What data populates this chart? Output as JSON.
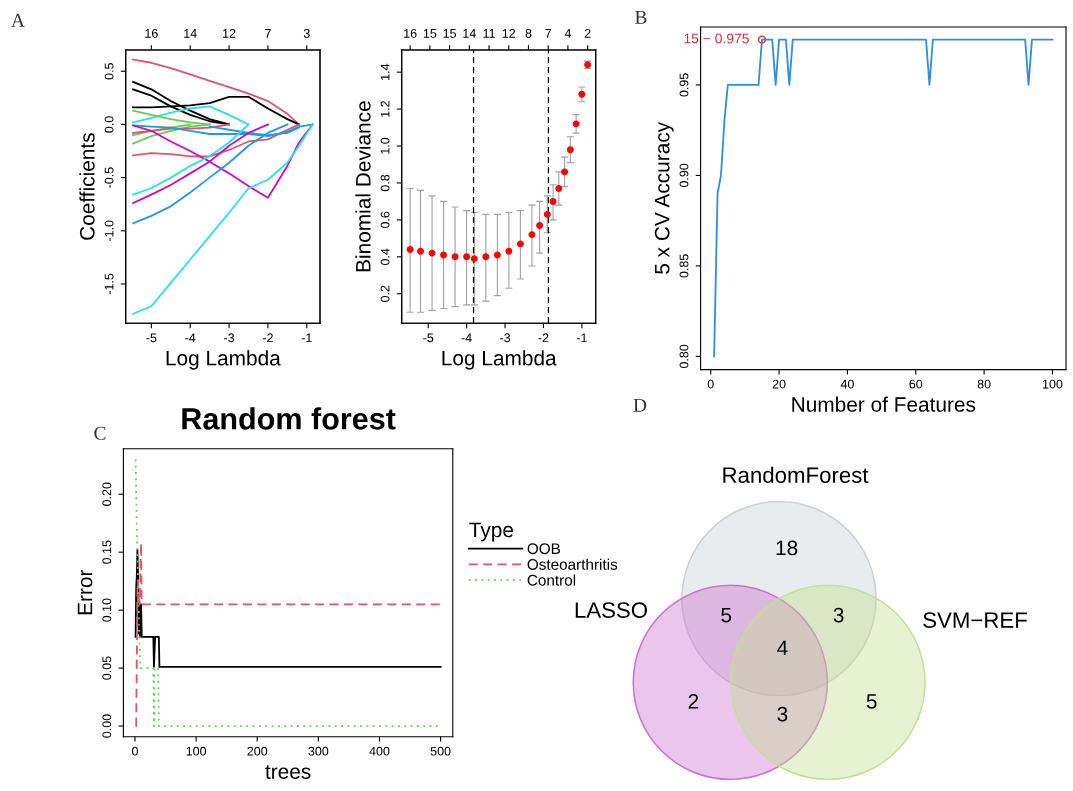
{
  "chart_data": [
    {
      "type": "line",
      "xlabel": "Log Lambda",
      "ylabel": "Coefficients",
      "annotations": [
        "A",
        "16",
        "14",
        "12",
        "7",
        "3"
      ],
      "xlim": [
        -5.66,
        -0.66
      ],
      "ylim": [
        -1.87,
        0.7
      ],
      "xticks": [
        -5,
        -4,
        -3,
        -2,
        -1
      ],
      "yticks": [
        {
          "value": -1.5,
          "label": "-1.5"
        },
        {
          "value": -1,
          "label": "-1.0"
        },
        {
          "value": -0.5,
          "label": "-0.5"
        },
        {
          "value": 0,
          "label": "0.0"
        },
        {
          "value": 0.5,
          "label": "0.5"
        }
      ],
      "x": [
        -5.47,
        -5,
        -4.5,
        -4,
        -3.5,
        -3,
        -2.5,
        -2,
        -1.5,
        -1.2,
        -0.85
      ],
      "series": [
        {
          "color": "#df536b",
          "values": [
            0.61,
            0.58,
            0.53,
            0.47,
            0.41,
            0.35,
            0.29,
            0.22,
            0.1,
            0,
            null
          ]
        },
        {
          "color": "#000000",
          "values": [
            0.4,
            0.33,
            0.22,
            0.13,
            0.05,
            0,
            null,
            null,
            null,
            null,
            null
          ]
        },
        {
          "color": "#000000",
          "values": [
            0.33,
            0.27,
            0.17,
            0.09,
            0.03,
            0,
            null,
            null,
            null,
            null,
            null
          ]
        },
        {
          "color": "#000000",
          "values": [
            0.16,
            0.16,
            0.17,
            0.18,
            0.2,
            0.26,
            0.26,
            0.15,
            0.05,
            0,
            null
          ]
        },
        {
          "color": "#28e2e5",
          "values": [
            0.02,
            0.06,
            0.11,
            0.15,
            0.17,
            0.09,
            0,
            null,
            null,
            null,
            null
          ]
        },
        {
          "color": "#61d04f",
          "values": [
            0.13,
            0.09,
            0.05,
            0.02,
            0,
            null,
            null,
            null,
            null,
            null,
            null
          ]
        },
        {
          "color": "#61d04f",
          "values": [
            -0.18,
            -0.11,
            -0.06,
            -0.02,
            0,
            null,
            null,
            null,
            null,
            null,
            null
          ]
        },
        {
          "color": "#61d04f",
          "values": [
            -0.1,
            -0.06,
            -0.03,
            0,
            null,
            null,
            null,
            null,
            null,
            null,
            null
          ]
        },
        {
          "color": "#df536b",
          "values": [
            -0.08,
            -0.06,
            -0.04,
            -0.04,
            -0.03,
            0,
            null,
            null,
            null,
            null,
            null
          ]
        },
        {
          "color": "#df536b",
          "values": [
            -0.29,
            -0.27,
            -0.28,
            -0.3,
            -0.3,
            -0.24,
            -0.16,
            -0.14,
            -0.05,
            0,
            null
          ]
        },
        {
          "color": "#2297e6",
          "values": [
            -0.01,
            -0.02,
            -0.03,
            -0.06,
            -0.09,
            -0.09,
            -0.09,
            -0.11,
            -0.07,
            -0.02,
            0
          ]
        },
        {
          "color": "#2297e6",
          "values": [
            null,
            null,
            null,
            null,
            -0.02,
            -0.05,
            -0.08,
            -0.1,
            -0.08,
            -0.03,
            null
          ]
        },
        {
          "color": "#cd0bbc",
          "values": [
            -0.01,
            -0.06,
            -0.16,
            -0.25,
            -0.35,
            -0.46,
            -0.58,
            -0.69,
            -0.39,
            -0.17,
            0
          ]
        },
        {
          "color": "#28e2e5",
          "values": [
            -0.66,
            -0.6,
            -0.5,
            -0.39,
            -0.3,
            -0.17,
            0,
            null,
            null,
            null,
            null
          ]
        },
        {
          "color": "#cd0bbc",
          "values": [
            -0.74,
            -0.66,
            -0.57,
            -0.46,
            -0.35,
            -0.2,
            -0.08,
            0,
            null,
            null,
            null
          ]
        },
        {
          "color": "#2297e6",
          "values": [
            -0.93,
            -0.86,
            -0.77,
            -0.64,
            -0.5,
            -0.36,
            -0.2,
            -0.08,
            0,
            null,
            null
          ]
        },
        {
          "color": "#28e2e5",
          "values": [
            -1.78,
            -1.71,
            -1.49,
            -1.27,
            -1.05,
            -0.83,
            -0.6,
            -0.52,
            -0.36,
            -0.2,
            0
          ]
        }
      ]
    },
    {
      "type": "scatter",
      "xlabel": "Log Lambda",
      "ylabel": "Binomial Deviance",
      "marker": "circle",
      "color": "#ff0000",
      "annotations": [
        "16",
        "15",
        "15",
        "14",
        "11",
        "12",
        "8",
        "7",
        "4",
        "2"
      ],
      "xlim": [
        -5.69,
        -0.64
      ],
      "ylim": [
        0.04,
        1.52
      ],
      "xticks": [
        -5,
        -4,
        -3,
        -2,
        -1
      ],
      "yticks": [
        0.2,
        0.4,
        0.6,
        0.8,
        {
          "value": 1,
          "label": "1.0"
        },
        1.2,
        1.4
      ],
      "ref_lines": [
        {
          "axis": "x",
          "value": -3.82,
          "line_style": "dashed",
          "color": "#000000"
        },
        {
          "axis": "x",
          "value": -1.87,
          "line_style": "dashed",
          "color": "#000000"
        }
      ],
      "x": [
        -5.47,
        -5.2,
        -4.9,
        -4.6,
        -4.3,
        -4.0,
        -3.8,
        -3.5,
        -3.2,
        -2.9,
        -2.6,
        -2.3,
        -2.1,
        -1.9,
        -1.75,
        -1.6,
        -1.45,
        -1.3,
        -1.15,
        -1.0,
        -0.85
      ],
      "values": [
        0.44,
        0.43,
        0.42,
        0.41,
        0.4,
        0.4,
        0.39,
        0.4,
        0.41,
        0.43,
        0.47,
        0.52,
        0.57,
        0.63,
        0.7,
        0.77,
        0.86,
        0.98,
        1.12,
        1.28,
        1.44
      ],
      "errors": [
        [
          0.1,
          0.77
        ],
        [
          0.1,
          0.76
        ],
        [
          0.11,
          0.73
        ],
        [
          0.12,
          0.7
        ],
        [
          0.13,
          0.67
        ],
        [
          0.14,
          0.65
        ],
        [
          0.14,
          0.64
        ],
        [
          0.16,
          0.63
        ],
        [
          0.19,
          0.63
        ],
        [
          0.23,
          0.64
        ],
        [
          0.28,
          0.65
        ],
        [
          0.35,
          0.68
        ],
        [
          0.42,
          0.7
        ],
        [
          0.53,
          0.73
        ],
        [
          0.6,
          0.79
        ],
        [
          0.68,
          0.86
        ],
        [
          0.78,
          0.94
        ],
        [
          0.91,
          1.05
        ],
        [
          1.07,
          1.17
        ],
        [
          1.24,
          1.32
        ],
        [
          1.42,
          1.46
        ]
      ]
    },
    {
      "type": "line",
      "xlabel": "Number of Features",
      "ylabel": "5 x CV Accuracy",
      "color": "#2f8ee0",
      "annotations": [
        "B",
        {
          "text": "15 − 0.975",
          "x": 15,
          "y": 0.975
        }
      ],
      "xlim": [
        -2.96,
        103.96
      ],
      "ylim": [
        0.7927,
        0.982
      ],
      "xticks": [
        0,
        20,
        40,
        60,
        80,
        100
      ],
      "yticks": [
        {
          "value": 0.8,
          "label": "0.80"
        },
        0.85,
        {
          "value": 0.9,
          "label": "0.90"
        },
        0.95
      ],
      "x": [
        1,
        2,
        3,
        4,
        5,
        6,
        7,
        8,
        9,
        10,
        11,
        12,
        13,
        14,
        15,
        16,
        17,
        18,
        19,
        20,
        21,
        22,
        23,
        24,
        25,
        26,
        27,
        28,
        29,
        30,
        31,
        32,
        33,
        34,
        35,
        36,
        37,
        38,
        39,
        40,
        41,
        42,
        43,
        44,
        45,
        46,
        47,
        48,
        49,
        50,
        51,
        52,
        53,
        54,
        55,
        56,
        57,
        58,
        59,
        60,
        61,
        62,
        63,
        64,
        65,
        66,
        67,
        68,
        69,
        70,
        71,
        72,
        73,
        74,
        75,
        76,
        77,
        78,
        79,
        80,
        81,
        82,
        83,
        84,
        85,
        86,
        87,
        88,
        89,
        90,
        91,
        92,
        93,
        94,
        95,
        96,
        97,
        98,
        99,
        100
      ],
      "values": [
        0.8,
        0.89,
        0.9,
        0.93,
        0.95,
        0.95,
        0.95,
        0.95,
        0.95,
        0.95,
        0.95,
        0.95,
        0.95,
        0.95,
        0.975,
        0.975,
        0.975,
        0.975,
        0.95,
        0.975,
        0.975,
        0.975,
        0.95,
        0.975,
        0.975,
        0.975,
        0.975,
        0.975,
        0.975,
        0.975,
        0.975,
        0.975,
        0.975,
        0.975,
        0.975,
        0.975,
        0.975,
        0.975,
        0.975,
        0.975,
        0.975,
        0.975,
        0.975,
        0.975,
        0.975,
        0.975,
        0.975,
        0.975,
        0.975,
        0.975,
        0.975,
        0.975,
        0.975,
        0.975,
        0.975,
        0.975,
        0.975,
        0.975,
        0.975,
        0.975,
        0.975,
        0.975,
        0.975,
        0.95,
        0.975,
        0.975,
        0.975,
        0.975,
        0.975,
        0.975,
        0.975,
        0.975,
        0.975,
        0.975,
        0.975,
        0.975,
        0.975,
        0.975,
        0.975,
        0.975,
        0.975,
        0.975,
        0.975,
        0.975,
        0.975,
        0.975,
        0.975,
        0.975,
        0.975,
        0.975,
        0.975,
        0.975,
        0.95,
        0.975,
        0.975,
        0.975,
        0.975,
        0.975,
        0.975,
        0.975
      ]
    },
    {
      "type": "line",
      "title": "Random forest",
      "xlabel": "trees",
      "ylabel": "Error",
      "legend_title": "Type",
      "legend": "right",
      "annotations": [
        "C"
      ],
      "xlim": [
        -18.96,
        519.96
      ],
      "ylim": [
        -0.0092,
        0.2392
      ],
      "xticks": [
        0,
        100,
        200,
        300,
        400,
        500
      ],
      "yticks": [
        {
          "value": 0,
          "label": "0.00"
        },
        0.05,
        {
          "value": 0.1,
          "label": "0.10"
        },
        0.15,
        {
          "value": 0.2,
          "label": "0.20"
        }
      ],
      "series": [
        {
          "name": "OOB",
          "color": "#000000",
          "line_style": "solid",
          "x": [
            1,
            2,
            3,
            4,
            5,
            6,
            7,
            8,
            9,
            10,
            11,
            30,
            31,
            33,
            39,
            40,
            500
          ],
          "values": [
            0.077,
            0.12,
            0.13,
            0.152,
            0.13,
            0.08,
            0.105,
            0.077,
            0.105,
            0.105,
            0.077,
            0.077,
            0.051,
            0.077,
            0.077,
            0.051,
            0.051
          ]
        },
        {
          "name": "Osteoarthritis",
          "color": "#df536b",
          "line_style": "dashed",
          "x": [
            1,
            2,
            3,
            4,
            5,
            6,
            7,
            8,
            9,
            10,
            11,
            12,
            500
          ],
          "values": [
            0,
            0,
            0.06,
            0.12,
            0.125,
            0.105,
            0.11,
            0.105,
            0.14,
            0.158,
            0.105,
            0.105,
            0.105
          ]
        },
        {
          "name": "Control",
          "color": "#61d04f",
          "line_style": "dotted",
          "x": [
            1,
            2,
            3,
            4,
            5,
            6,
            7,
            8,
            9,
            30,
            31,
            32,
            38,
            39,
            500
          ],
          "values": [
            0.23,
            0.2,
            0.17,
            0.15,
            0.125,
            0.1,
            0.08,
            0.06,
            0.05,
            0.05,
            0,
            0.05,
            0.05,
            0,
            0
          ]
        }
      ]
    },
    {
      "type": "other",
      "annotations": [
        "D",
        "18",
        "5",
        "3",
        "4",
        "2",
        "3",
        "5"
      ],
      "categories": [
        "RandomForest",
        "LASSO",
        "SVM−REF"
      ],
      "colors": [
        "#c9d0d6",
        "#cc6fd0",
        "#c2e08f"
      ]
    }
  ]
}
